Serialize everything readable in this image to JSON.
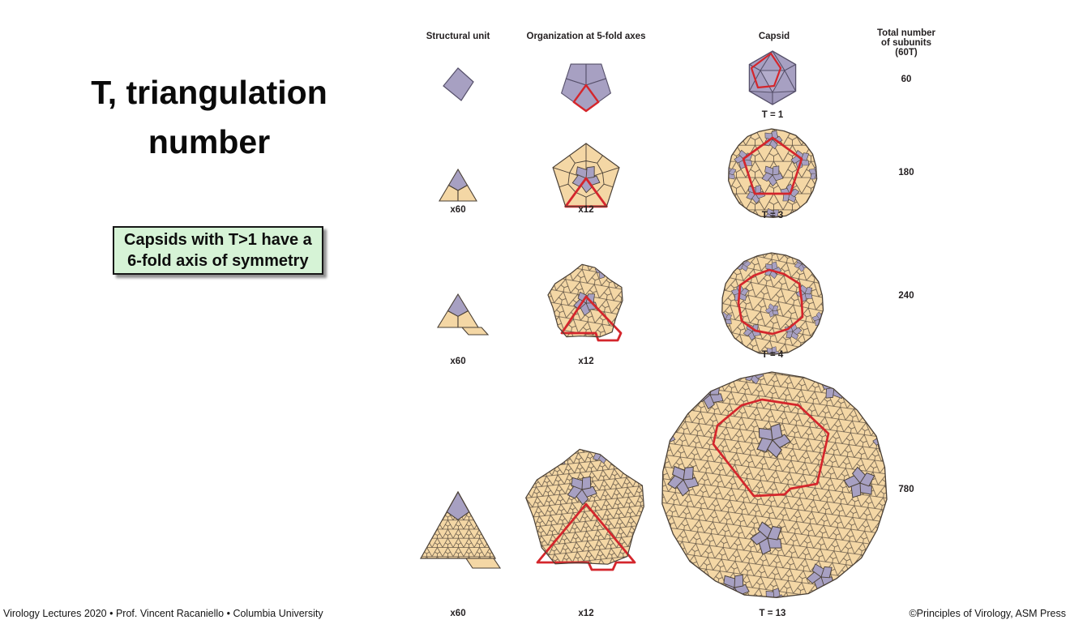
{
  "slide": {
    "title_line1": "T, triangulation",
    "title_line2": "number",
    "callout_line1": "Capsids with T>1 have a",
    "callout_line2": "6-fold axis of symmetry",
    "footer_left": "Virology Lectures 2020 • Prof. Vincent Racaniello • Columbia University",
    "footer_right": "©Principles of Virology, ASM Press"
  },
  "figure": {
    "headers": {
      "structural_unit": "Structural unit",
      "organization": "Organization at 5-fold axes",
      "capsid": "Capsid",
      "total_line1": "Total number",
      "total_line2": "of subunits",
      "total_line3": "(60T)"
    },
    "rows": [
      {
        "t": 1,
        "t_label": "T = 1",
        "total": "60"
      },
      {
        "t": 3,
        "t_label": "T = 3",
        "unit_mult": "x60",
        "org_mult": "x12",
        "total": "180"
      },
      {
        "t": 4,
        "t_label": "T = 4",
        "unit_mult": "x60",
        "org_mult": "x12",
        "total": "240"
      },
      {
        "t": 13,
        "t_label": "T = 13",
        "unit_mult": "x60",
        "org_mult": "x12",
        "total": "780"
      }
    ],
    "colors": {
      "subunit_purple": "#a7a0c2",
      "subunit_tan": "#f4d7a5",
      "outline": "#4a4036",
      "outline_purple": "#56506a",
      "highlight_red": "#d4262c",
      "callout_green": "#d6f3d6"
    }
  }
}
